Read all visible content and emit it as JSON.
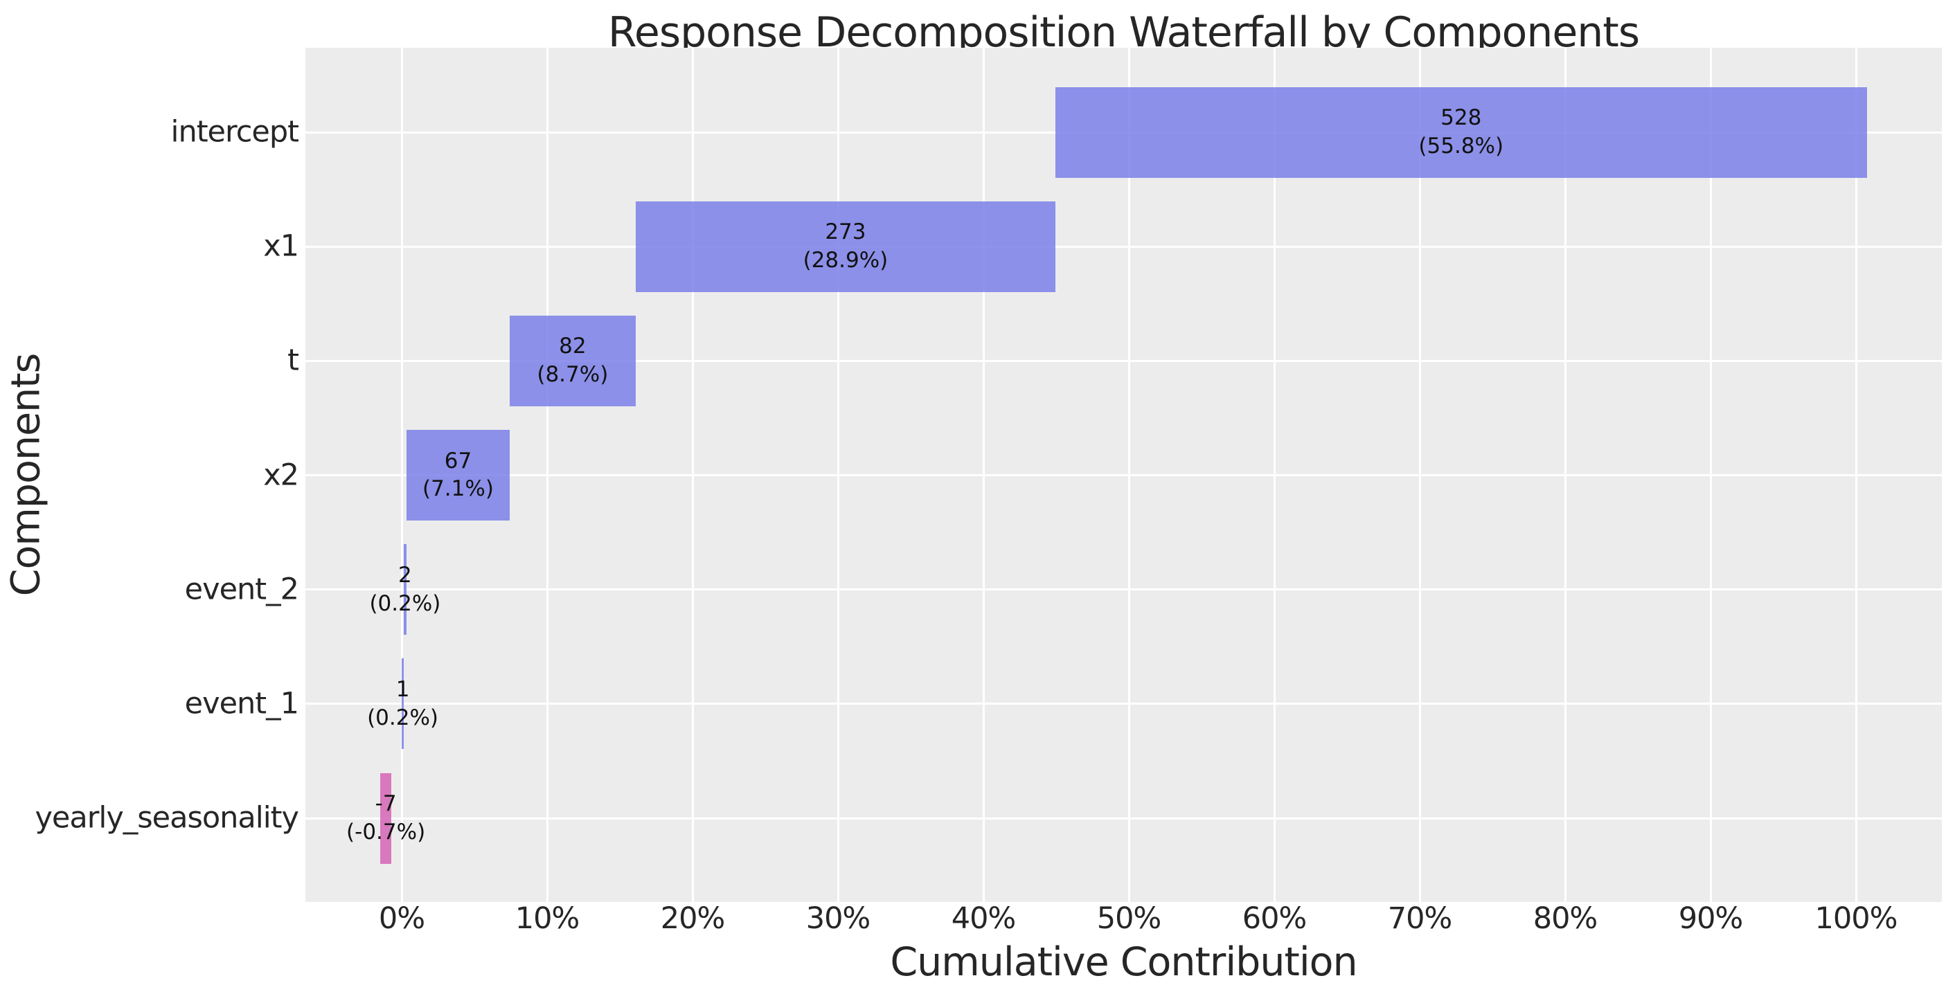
{
  "figure": {
    "title": "Response Decomposition Waterfall by Components"
  },
  "axes": {
    "xlabel": "Cumulative Contribution",
    "ylabel": "Components",
    "x_tick_labels": [
      "0%",
      "10%",
      "20%",
      "30%",
      "40%",
      "50%",
      "60%",
      "70%",
      "80%",
      "90%",
      "100%"
    ],
    "y_tick_labels": [
      "intercept",
      "x1",
      "t",
      "x2",
      "event_2",
      "event_1",
      "yearly_seasonality"
    ]
  },
  "colors": {
    "positive_bar": "rgba(123,128,232,0.85)",
    "negative_bar": "rgba(213,101,181,0.85)",
    "positive_bar_hex": "#8a8ee8",
    "negative_bar_hex": "#d673bc",
    "plot_background": "#ececec",
    "figure_background": "#ffffff",
    "grid": "#ffffff",
    "tick_text": "#262626",
    "annotation_text": "#111111"
  },
  "chart_data": {
    "type": "bar",
    "subtype": "horizontal_waterfall",
    "title": "Response Decomposition Waterfall by Components",
    "xlabel": "Cumulative Contribution",
    "ylabel": "Components",
    "categories": [
      "intercept",
      "x1",
      "t",
      "x2",
      "event_2",
      "event_1",
      "yearly_seasonality"
    ],
    "values": [
      528,
      273,
      82,
      67,
      2,
      1,
      -7
    ],
    "percent_of_total": [
      55.8,
      28.9,
      8.7,
      7.1,
      0.2,
      0.2,
      -0.7
    ],
    "bars": [
      {
        "category": "intercept",
        "value_label": "528",
        "pct_label": "(55.8%)",
        "start_pct": 44.95,
        "end_pct": 100.74,
        "sign": "positive"
      },
      {
        "category": "x1",
        "value_label": "273",
        "pct_label": "(28.9%)",
        "start_pct": 16.09,
        "end_pct": 44.95,
        "sign": "positive"
      },
      {
        "category": "t",
        "value_label": "82",
        "pct_label": "(8.7%)",
        "start_pct": 7.42,
        "end_pct": 16.09,
        "sign": "positive"
      },
      {
        "category": "x2",
        "value_label": "67",
        "pct_label": "(7.1%)",
        "start_pct": 0.34,
        "end_pct": 7.42,
        "sign": "positive"
      },
      {
        "category": "event_2",
        "value_label": "2",
        "pct_label": "(0.2%)",
        "start_pct": 0.13,
        "end_pct": 0.34,
        "sign": "positive"
      },
      {
        "category": "event_1",
        "value_label": "1",
        "pct_label": "(0.2%)",
        "start_pct": 0.02,
        "end_pct": 0.13,
        "sign": "positive"
      },
      {
        "category": "yearly_seasonality",
        "value_label": "-7",
        "pct_label": "(-0.7%)",
        "start_pct": -1.46,
        "end_pct": -0.72,
        "sign": "negative"
      }
    ],
    "x_tick_values": [
      0,
      10,
      20,
      30,
      40,
      50,
      60,
      70,
      80,
      90,
      100
    ],
    "x_tick_labels": [
      "0%",
      "10%",
      "20%",
      "30%",
      "40%",
      "50%",
      "60%",
      "70%",
      "80%",
      "90%",
      "100%"
    ],
    "xlim_pct": [
      -6.62,
      105.9
    ],
    "grid": true,
    "legend_position": "none"
  }
}
